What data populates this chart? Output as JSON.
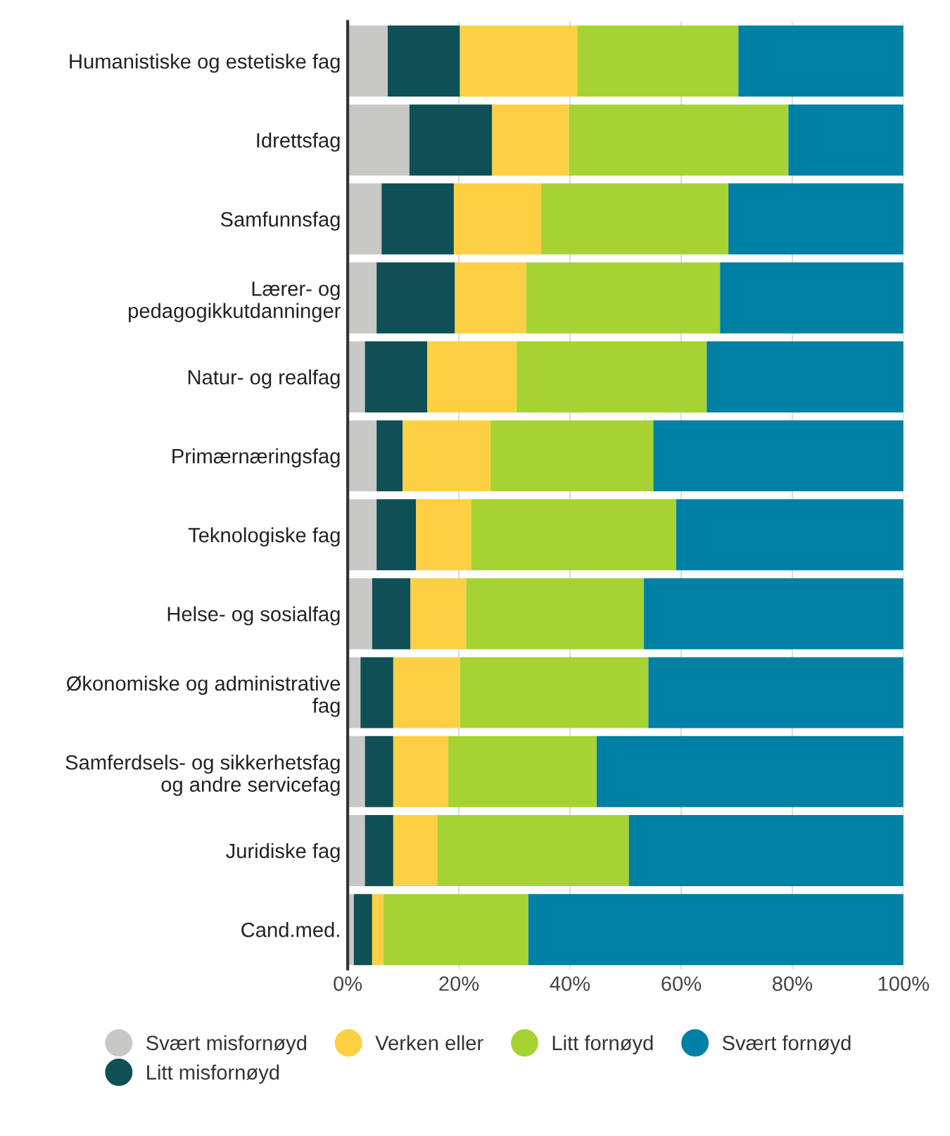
{
  "chart_data": {
    "type": "bar",
    "orientation": "horizontal",
    "stacked": true,
    "categories": [
      "Humanistiske og estetiske fag",
      "Idrettsfag",
      "Samfunnsfag",
      "Lærer- og\npedagogikkutdanninger",
      "Natur- og realfag",
      "Primærnæringsfag",
      "Teknologiske fag",
      "Helse- og sosialfag",
      "Økonomiske og administrative\nfag",
      "Samferdsels- og sikkerhetsfag\nog andre servicefag",
      "Juridiske fag",
      "Cand.med."
    ],
    "series": [
      {
        "name": "Svært misfornøyd",
        "color": "#c8c9c7",
        "values": [
          7.2,
          11.1,
          6.1,
          5.2,
          3.1,
          5.2,
          5.2,
          4.4,
          2.3,
          3.1,
          3.1,
          1.1
        ]
      },
      {
        "name": "Litt misfornøyd",
        "color": "#0e5055",
        "values": [
          13.0,
          14.9,
          13.0,
          14.1,
          11.2,
          4.7,
          7.1,
          6.9,
          5.9,
          5.1,
          5.1,
          3.3
        ]
      },
      {
        "name": "Verken eller",
        "color": "#fdd043",
        "values": [
          21.1,
          13.8,
          15.7,
          12.8,
          16.1,
          15.8,
          9.9,
          10.0,
          12.0,
          9.9,
          7.9,
          2.0
        ]
      },
      {
        "name": "Litt fornøyd",
        "color": "#a6d333",
        "values": [
          29.0,
          39.5,
          33.7,
          34.9,
          34.2,
          29.3,
          36.9,
          32.0,
          33.9,
          26.7,
          34.5,
          26.1
        ]
      },
      {
        "name": "Svært fornøyd",
        "color": "#0080a4",
        "values": [
          29.7,
          20.7,
          31.5,
          33.0,
          35.4,
          45.0,
          40.9,
          46.7,
          45.9,
          55.2,
          49.4,
          67.5
        ]
      }
    ],
    "xlim": [
      0,
      100
    ],
    "xticks": [
      {
        "value": 0,
        "label": "0%"
      },
      {
        "value": 20,
        "label": "20%"
      },
      {
        "value": 40,
        "label": "40%"
      },
      {
        "value": 60,
        "label": "60%"
      },
      {
        "value": 80,
        "label": "80%"
      },
      {
        "value": 100,
        "label": "100%"
      }
    ],
    "grid": "x",
    "legend": "bottom",
    "marker": "circle"
  }
}
